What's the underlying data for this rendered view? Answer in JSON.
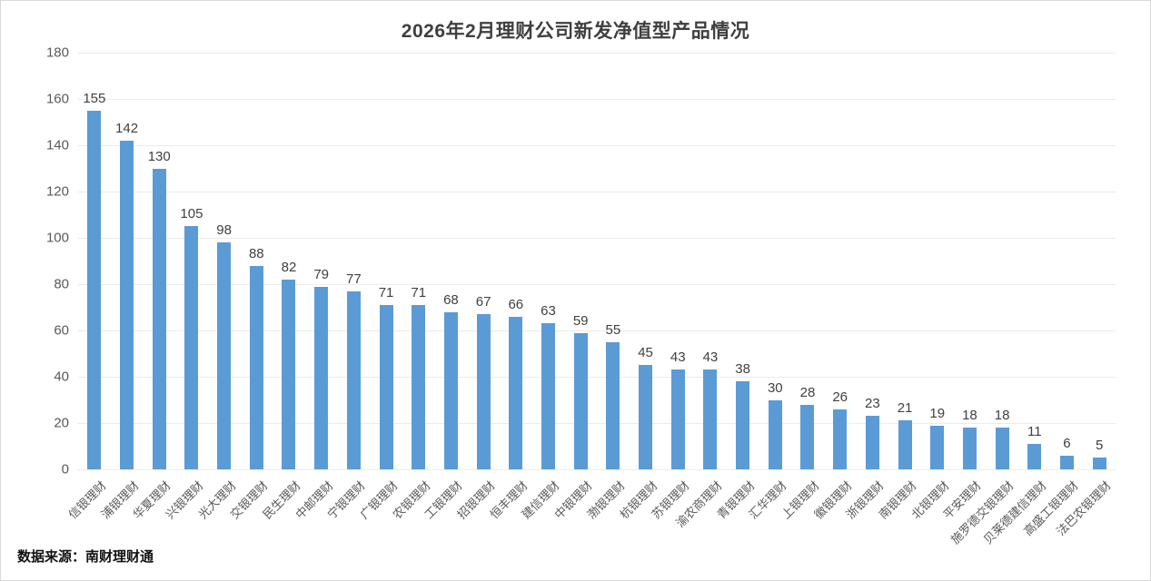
{
  "chart_data": {
    "type": "bar",
    "title": "2026年2月理财公司新发净值型产品情况",
    "categories": [
      "信银理财",
      "浦银理财",
      "华夏理财",
      "兴银理财",
      "光大理财",
      "交银理财",
      "民生理财",
      "中邮理财",
      "宁银理财",
      "广银理财",
      "农银理财",
      "工银理财",
      "招银理财",
      "恒丰理财",
      "建信理财",
      "中银理财",
      "渤银理财",
      "杭银理财",
      "苏银理财",
      "渝农商理财",
      "青银理财",
      "汇华理财",
      "上银理财",
      "徽银理财",
      "浙银理财",
      "南银理财",
      "北银理财",
      "平安理财",
      "施罗德交银理财",
      "贝莱德建信理财",
      "高盛工银理财",
      "法巴农银理财"
    ],
    "values": [
      155,
      142,
      130,
      105,
      98,
      88,
      82,
      79,
      77,
      71,
      71,
      68,
      67,
      66,
      63,
      59,
      55,
      45,
      43,
      43,
      38,
      30,
      28,
      26,
      23,
      21,
      19,
      18,
      18,
      11,
      6,
      5
    ],
    "xlabel": "",
    "ylabel": "",
    "ylim": [
      0,
      180
    ],
    "ytick_step": 20,
    "grid": true,
    "legend": "none",
    "value_labels_shown": true,
    "bar_color": "#5B9BD5"
  },
  "footer": {
    "source": "数据来源：南财理财通"
  }
}
